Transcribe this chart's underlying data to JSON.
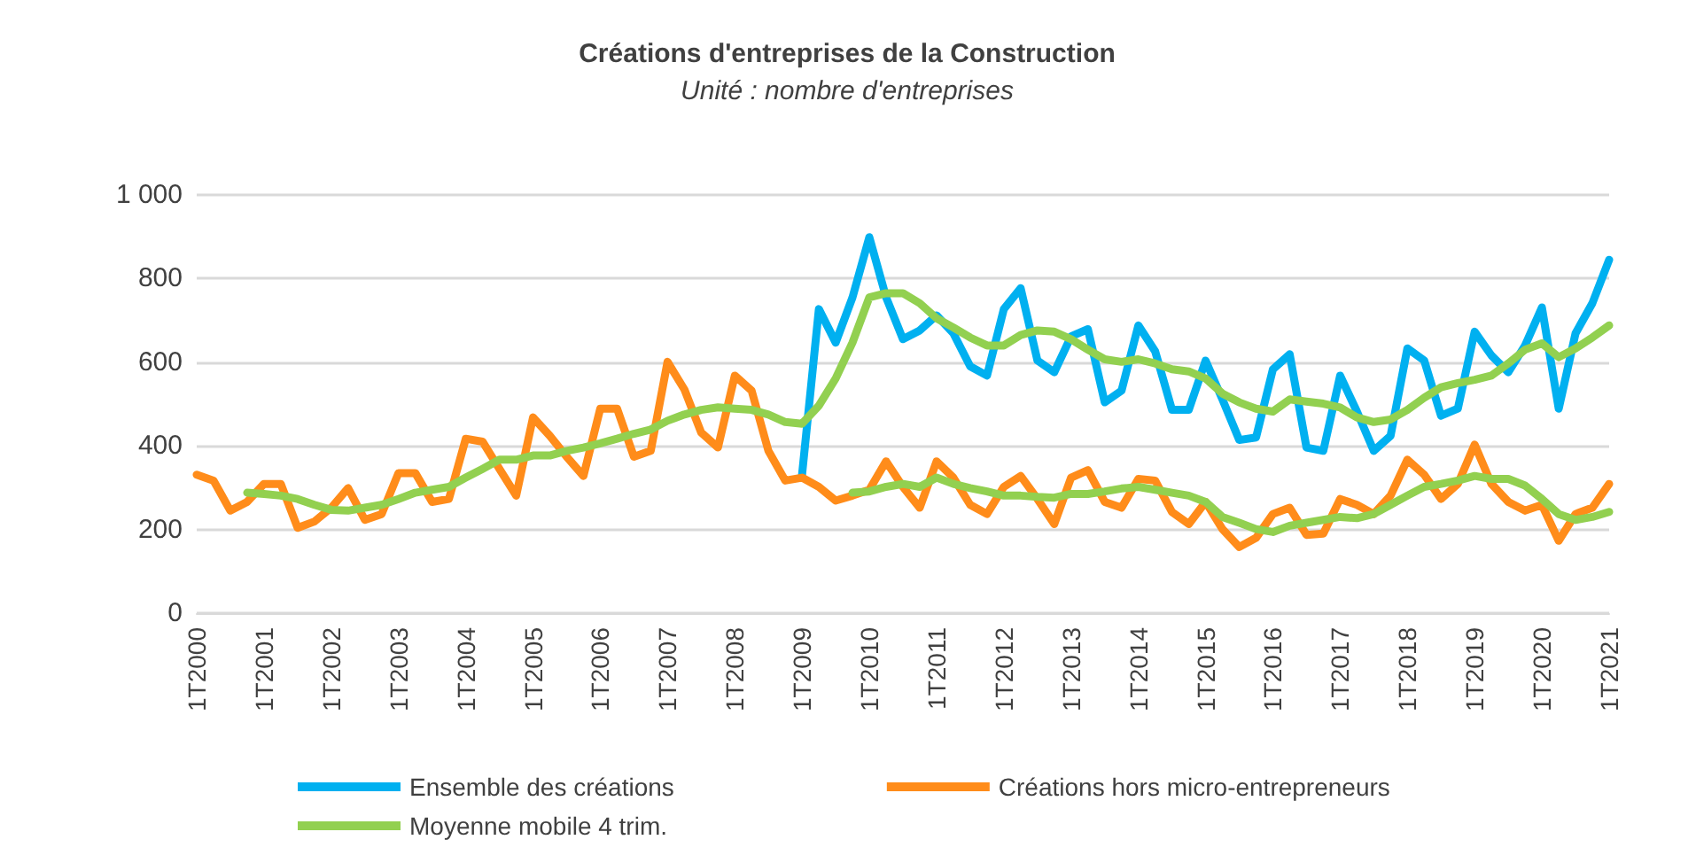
{
  "chart_data": {
    "type": "line",
    "title": "Créations d'entreprises de la Construction",
    "subtitle": "Unité : nombre d'entreprises",
    "categories": [
      "1T2000",
      null,
      null,
      null,
      "1T2001",
      null,
      null,
      null,
      "1T2002",
      null,
      null,
      null,
      "1T2003",
      null,
      null,
      null,
      "1T2004",
      null,
      null,
      null,
      "1T2005",
      null,
      null,
      null,
      "1T2006",
      null,
      null,
      null,
      "1T2007",
      null,
      null,
      null,
      "1T2008",
      null,
      null,
      null,
      "1T2009",
      null,
      null,
      null,
      "1T2010",
      null,
      null,
      null,
      "1T2011",
      null,
      null,
      null,
      "1T2012",
      null,
      null,
      null,
      "1T2013",
      null,
      null,
      null,
      "1T2014",
      null,
      null,
      null,
      "1T2015",
      null,
      null,
      null,
      "1T2016",
      null,
      null,
      null,
      "1T2017",
      null,
      null,
      null,
      "1T2018",
      null,
      null,
      null,
      "1T2019",
      null,
      null,
      null,
      "1T2020",
      null,
      null,
      null,
      "1T2021"
    ],
    "series": [
      {
        "name": "Ensemble des créations",
        "color": "#00b0f0",
        "values": [
          null,
          null,
          null,
          null,
          null,
          null,
          null,
          null,
          null,
          null,
          null,
          null,
          null,
          null,
          null,
          null,
          null,
          null,
          null,
          null,
          null,
          null,
          null,
          null,
          null,
          null,
          null,
          null,
          null,
          null,
          null,
          null,
          null,
          null,
          null,
          null,
          331,
          727,
          647,
          755,
          899,
          755,
          655,
          676,
          712,
          669,
          590,
          568,
          727,
          777,
          604,
          576,
          662,
          679,
          504,
          532,
          688,
          626,
          486,
          486,
          604,
          511,
          414,
          420,
          583,
          619,
          396,
          388,
          568,
          482,
          388,
          424,
          633,
          604,
          472,
          489,
          673,
          616,
          576,
          640,
          731,
          489,
          669,
          741,
          845
        ]
      },
      {
        "name": "Créations hors micro-entrepreneurs",
        "color": "#ff8c1a",
        "values": [
          331,
          317,
          245,
          266,
          309,
          309,
          204,
          219,
          252,
          299,
          223,
          237,
          335,
          335,
          266,
          273,
          417,
          410,
          345,
          281,
          468,
          424,
          374,
          328,
          489,
          489,
          374,
          388,
          601,
          535,
          432,
          396,
          568,
          532,
          388,
          317,
          324,
          302,
          269,
          281,
          295,
          363,
          302,
          252,
          363,
          324,
          259,
          237,
          302,
          328,
          273,
          213,
          324,
          342,
          266,
          252,
          321,
          317,
          242,
          213,
          266,
          201,
          158,
          180,
          237,
          252,
          187,
          190,
          273,
          259,
          237,
          281,
          367,
          331,
          273,
          309,
          403,
          309,
          266,
          245,
          259,
          173,
          237,
          252,
          309
        ]
      },
      {
        "name": "Moyenne mobile 4 trim.",
        "color": "#92d050",
        "values": [
          null,
          null,
          null,
          288,
          285,
          281,
          273,
          259,
          247,
          245,
          252,
          259,
          273,
          288,
          295,
          302,
          324,
          345,
          367,
          367,
          377,
          377,
          388,
          396,
          406,
          417,
          429,
          439,
          460,
          475,
          486,
          492,
          489,
          486,
          475,
          457,
          453,
          496,
          561,
          647,
          755,
          765,
          765,
          741,
          705,
          683,
          659,
          640,
          640,
          665,
          676,
          673,
          655,
          630,
          607,
          601,
          607,
          597,
          583,
          578,
          561,
          525,
          504,
          489,
          482,
          511,
          506,
          501,
          492,
          468,
          457,
          463,
          486,
          515,
          540,
          550,
          558,
          568,
          597,
          630,
          645,
          612,
          633,
          659,
          688
        ]
      },
      {
        "color": "#92d050",
        "values": [
          null,
          null,
          null,
          null,
          null,
          null,
          null,
          null,
          null,
          null,
          null,
          null,
          null,
          null,
          null,
          null,
          null,
          null,
          null,
          null,
          null,
          null,
          null,
          null,
          null,
          null,
          null,
          null,
          null,
          null,
          null,
          null,
          null,
          null,
          null,
          null,
          null,
          null,
          null,
          288,
          291,
          302,
          309,
          302,
          324,
          309,
          299,
          291,
          281,
          281,
          278,
          276,
          285,
          285,
          291,
          298,
          302,
          295,
          288,
          281,
          266,
          230,
          216,
          201,
          194,
          209,
          216,
          223,
          230,
          227,
          237,
          259,
          281,
          302,
          309,
          317,
          328,
          321,
          321,
          305,
          273,
          237,
          223,
          230,
          242
        ]
      }
    ],
    "ylim": [
      0,
      1000
    ],
    "yticks": [
      0,
      200,
      400,
      600,
      800,
      {
        "value": 1000,
        "label": "1 000"
      }
    ],
    "grid": "y",
    "legend": "bottom",
    "marker": "none",
    "line_style": "solid"
  }
}
